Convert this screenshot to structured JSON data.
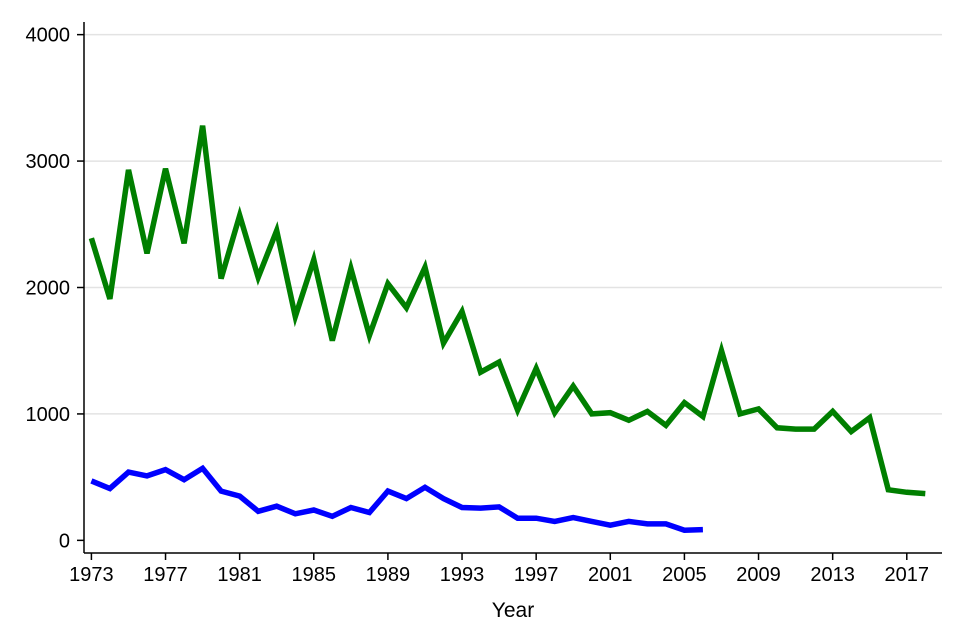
{
  "chart_data": {
    "type": "line",
    "title": "",
    "xlabel": "Year",
    "ylabel": "",
    "xlim": [
      1972.6,
      2018.9
    ],
    "ylim": [
      -100,
      4100
    ],
    "x_ticks": [
      1973,
      1977,
      1981,
      1985,
      1989,
      1993,
      1997,
      2001,
      2005,
      2009,
      2013,
      2017
    ],
    "y_ticks": [
      0,
      1000,
      2000,
      3000,
      4000
    ],
    "grid": "horizontal",
    "legend": "none",
    "series": [
      {
        "color": "#007f00",
        "x": [
          1973,
          1974,
          1975,
          1976,
          1977,
          1978,
          1979,
          1980,
          1981,
          1982,
          1983,
          1984,
          1985,
          1986,
          1987,
          1988,
          1989,
          1990,
          1991,
          1992,
          1993,
          1994,
          1995,
          1996,
          1997,
          1998,
          1999,
          2000,
          2001,
          2002,
          2003,
          2004,
          2005,
          2006,
          2007,
          2008,
          2009,
          2010,
          2011,
          2012,
          2013,
          2014,
          2015,
          2016,
          2017,
          2018
        ],
        "y": [
          2390,
          1910,
          2930,
          2270,
          2940,
          2350,
          3280,
          2070,
          2570,
          2080,
          2450,
          1770,
          2220,
          1580,
          2150,
          1620,
          2030,
          1840,
          2160,
          1560,
          1810,
          1330,
          1410,
          1030,
          1360,
          1010,
          1220,
          1000,
          1010,
          950,
          1020,
          910,
          1090,
          980,
          1500,
          1000,
          1040,
          890,
          880,
          880,
          1020,
          860,
          970,
          400,
          380,
          370
        ]
      },
      {
        "color": "#0000ff",
        "x": [
          1973,
          1974,
          1975,
          1976,
          1977,
          1978,
          1979,
          1980,
          1981,
          1982,
          1983,
          1984,
          1985,
          1986,
          1987,
          1988,
          1989,
          1990,
          1991,
          1992,
          1993,
          1994,
          1995,
          1996,
          1997,
          1998,
          1999,
          2000,
          2001,
          2002,
          2003,
          2004,
          2005,
          2006
        ],
        "y": [
          470,
          410,
          540,
          510,
          560,
          480,
          570,
          390,
          350,
          230,
          270,
          210,
          240,
          190,
          260,
          220,
          390,
          330,
          420,
          330,
          260,
          255,
          265,
          175,
          175,
          150,
          180,
          150,
          120,
          150,
          130,
          130,
          80,
          85
        ]
      }
    ]
  }
}
